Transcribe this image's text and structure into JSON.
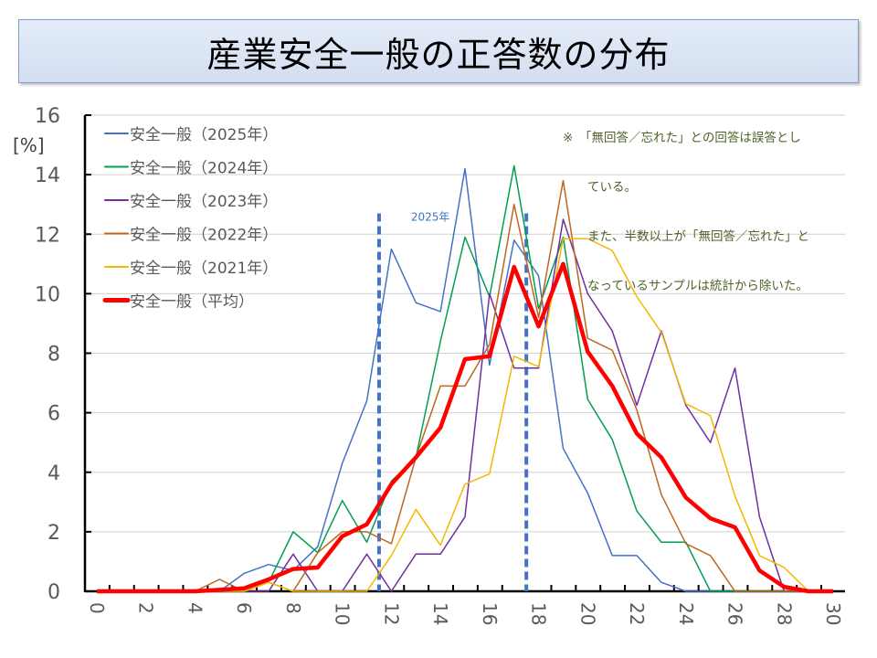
{
  "chart_data": {
    "type": "line",
    "title": "産業安全一般の正答数の分布",
    "ylabel": "[%]",
    "xlabel": "",
    "xlim": [
      0,
      30
    ],
    "ylim": [
      0,
      16
    ],
    "x_ticks": [
      0,
      2,
      4,
      6,
      8,
      10,
      12,
      14,
      16,
      18,
      20,
      22,
      24,
      26,
      28,
      30
    ],
    "y_ticks": [
      0,
      2,
      4,
      6,
      8,
      10,
      12,
      14,
      16
    ],
    "grid": true,
    "legend_position": "top-left",
    "x": [
      0,
      1,
      2,
      3,
      4,
      5,
      6,
      7,
      8,
      9,
      10,
      11,
      12,
      13,
      14,
      15,
      16,
      17,
      18,
      19,
      20,
      21,
      22,
      23,
      24,
      25,
      26,
      27,
      28,
      29,
      30
    ],
    "series": [
      {
        "name": "安全一般（2025年）",
        "color": "#4472c4",
        "width": 1.5,
        "values": [
          0,
          0,
          0,
          0,
          0,
          0,
          0.6,
          0.9,
          0.7,
          1.5,
          4.3,
          6.4,
          11.5,
          9.7,
          9.4,
          14.2,
          7.6,
          11.8,
          10.6,
          4.8,
          3.3,
          1.2,
          1.2,
          0.3,
          0,
          0,
          0,
          0,
          0,
          0,
          0
        ]
      },
      {
        "name": "安全一般（2024年）",
        "color": "#00a050",
        "width": 1.5,
        "values": [
          0,
          0,
          0,
          0,
          0,
          0,
          0.05,
          0.3,
          2.0,
          1.3,
          3.05,
          1.65,
          3.7,
          4.5,
          8.4,
          11.9,
          9.9,
          14.3,
          9.5,
          11.9,
          6.45,
          5.1,
          2.7,
          1.65,
          1.65,
          0,
          0,
          0,
          0,
          0,
          0
        ]
      },
      {
        "name": "安全一般（2023年）",
        "color": "#7030a0",
        "width": 1.5,
        "values": [
          0,
          0,
          0,
          0,
          0,
          0,
          0,
          0,
          1.25,
          0,
          0,
          1.25,
          0,
          1.25,
          1.25,
          2.5,
          10.0,
          7.5,
          7.5,
          12.5,
          10.0,
          8.75,
          6.25,
          8.75,
          6.25,
          5.0,
          7.5,
          2.5,
          0,
          0,
          0
        ]
      },
      {
        "name": "安全一般（2022年）",
        "color": "#c0651e",
        "width": 1.5,
        "values": [
          0,
          0,
          0,
          0,
          0,
          0.4,
          0,
          0.3,
          0,
          1.3,
          2.0,
          2.0,
          1.6,
          4.5,
          6.9,
          6.9,
          8.3,
          13.0,
          9.2,
          13.8,
          8.5,
          8.1,
          6.1,
          3.25,
          1.6,
          1.2,
          0,
          0,
          0,
          0,
          0
        ]
      },
      {
        "name": "安全一般（2021年）",
        "color": "#f5b800",
        "width": 1.5,
        "values": [
          0,
          0,
          0,
          0,
          0,
          0,
          0,
          0.3,
          0,
          0,
          0,
          0,
          1.2,
          2.75,
          1.55,
          3.6,
          3.95,
          7.9,
          7.55,
          11.85,
          11.85,
          11.45,
          9.9,
          8.7,
          6.3,
          5.9,
          3.2,
          1.2,
          0.8,
          0,
          0
        ]
      },
      {
        "name": "安全一般（平均）",
        "color": "#ff0000",
        "width": 4.5,
        "values": [
          0,
          0,
          0,
          0,
          0,
          0.05,
          0.1,
          0.4,
          0.75,
          0.8,
          1.85,
          2.25,
          3.6,
          4.5,
          5.5,
          7.8,
          7.9,
          10.9,
          8.9,
          11.0,
          8.05,
          6.9,
          5.3,
          4.5,
          3.15,
          2.45,
          2.15,
          0.7,
          0.15,
          0,
          0
        ]
      }
    ],
    "reference_lines": [
      {
        "x": 11.5,
        "y_top": 12.7,
        "color": "#4472c4"
      },
      {
        "x": 17.5,
        "y_top": 12.7,
        "color": "#4472c4"
      }
    ],
    "annotation_label": {
      "text": "2025年",
      "color": "#4472c4"
    },
    "note": [
      "※　「無回答／忘れた」との回答は誤答とし",
      "　　ている。",
      "　　また、半数以上が「無回答／忘れた」と",
      "　　なっているサンプルは統計から除いた。"
    ]
  }
}
